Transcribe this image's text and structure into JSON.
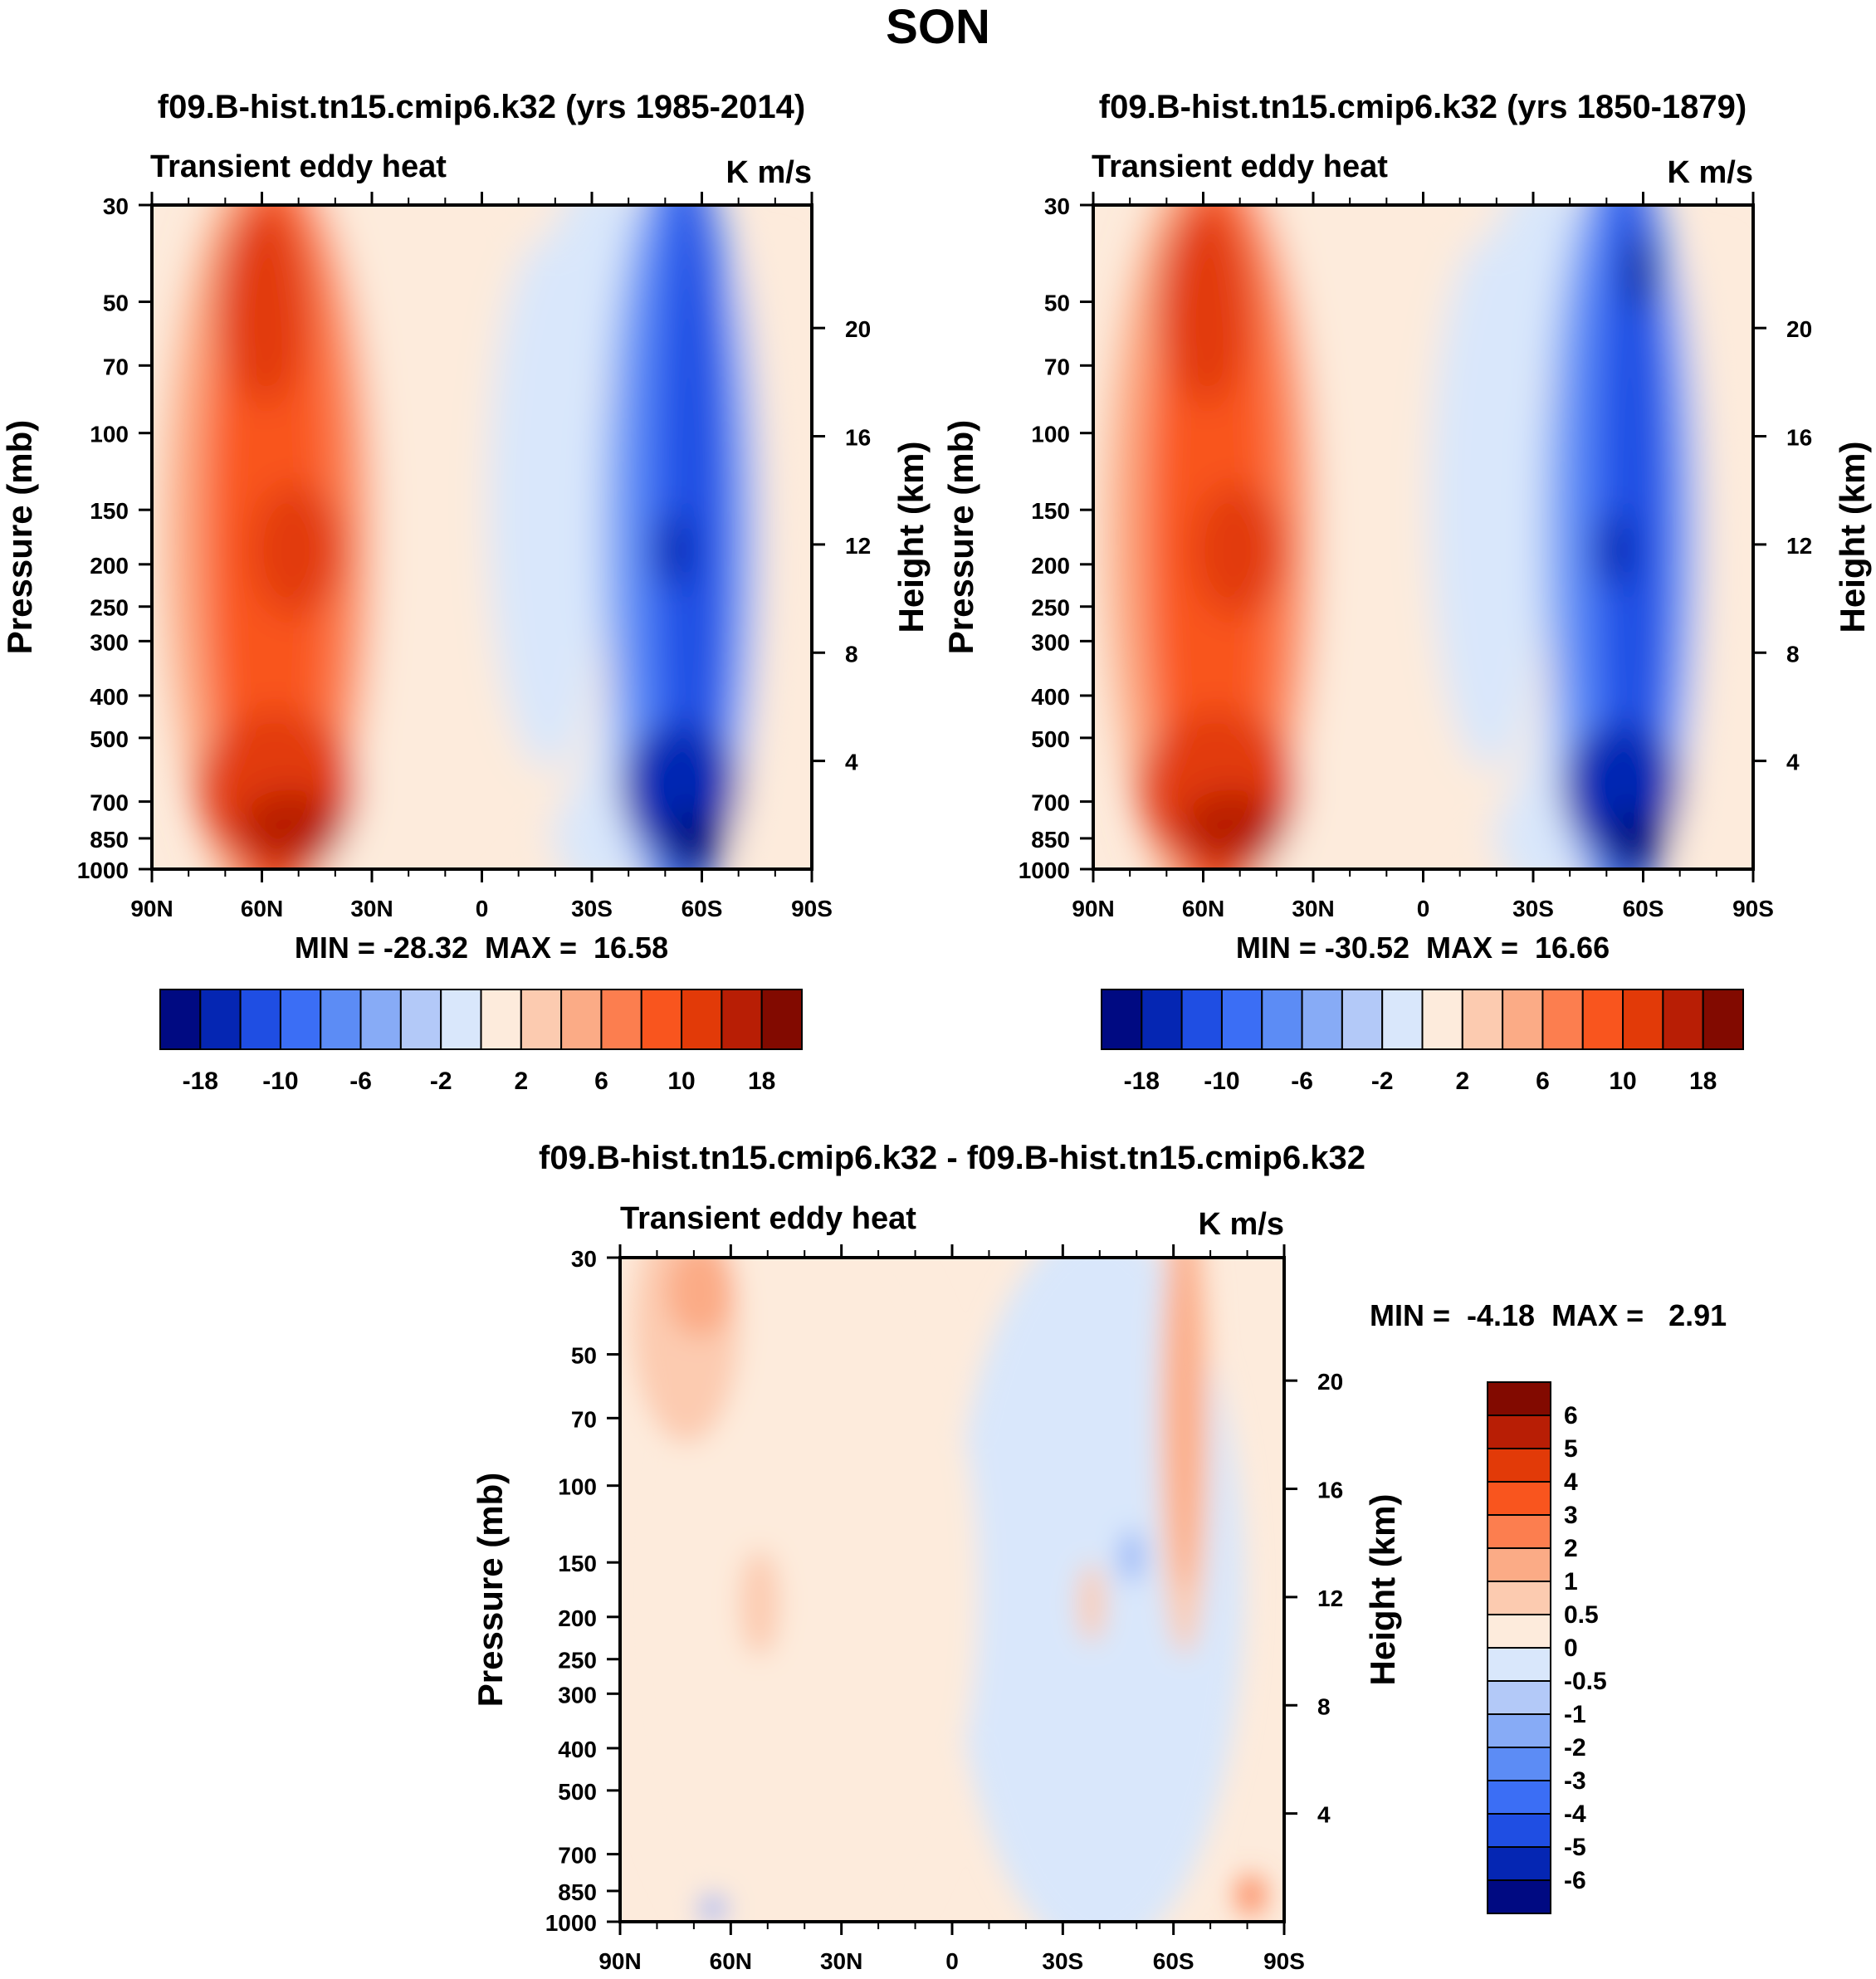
{
  "page_title": "SON",
  "colors": {
    "neg": [
      "#000a82",
      "#0526b3",
      "#1f4ee3",
      "#3b6ef5",
      "#5c8cf5",
      "#87abf6",
      "#b3c9f8",
      "#d9e7fb"
    ],
    "pos": [
      "#fdebdc",
      "#fccbb0",
      "#fbab86",
      "#fc7e4f",
      "#f9551e",
      "#e23a08",
      "#b81e05",
      "#820a00"
    ]
  },
  "chart_data": [
    {
      "id": "panel-1985-2014",
      "type": "contour",
      "title": "f09.B-hist.tn15.cmip6.k32 (yrs 1985-2014)",
      "field_label": "Transient eddy heat",
      "units": "K m/s",
      "ylabel": "Pressure (mb)",
      "ylabel_right": "Height (km)",
      "x_ticks": [
        "90N",
        "60N",
        "30N",
        "0",
        "30S",
        "60S",
        "90S"
      ],
      "x_range": [
        90,
        -90
      ],
      "y_ticks": [
        30,
        50,
        70,
        100,
        150,
        200,
        250,
        300,
        400,
        500,
        700,
        850,
        1000
      ],
      "y_range": [
        30,
        1000
      ],
      "height_ticks": [
        20,
        16,
        12,
        8,
        4
      ],
      "stats": "MIN = -28.32  MAX =  16.58",
      "min": -28.32,
      "max": 16.58,
      "levels": [
        -18,
        -14,
        -10,
        -8,
        -6,
        -4,
        -2,
        0,
        2,
        4,
        6,
        8,
        10,
        14,
        18
      ],
      "colorbar_labels": [
        "-18",
        "-10",
        "-6",
        "-2",
        "2",
        "6",
        "10",
        "18"
      ]
    },
    {
      "id": "panel-1850-1879",
      "type": "contour",
      "title": "f09.B-hist.tn15.cmip6.k32 (yrs 1850-1879)",
      "field_label": "Transient eddy heat",
      "units": "K m/s",
      "ylabel": "Pressure (mb)",
      "ylabel_right": "Height (km)",
      "x_ticks": [
        "90N",
        "60N",
        "30N",
        "0",
        "30S",
        "60S",
        "90S"
      ],
      "x_range": [
        90,
        -90
      ],
      "y_ticks": [
        30,
        50,
        70,
        100,
        150,
        200,
        250,
        300,
        400,
        500,
        700,
        850,
        1000
      ],
      "y_range": [
        30,
        1000
      ],
      "height_ticks": [
        20,
        16,
        12,
        8,
        4
      ],
      "stats": "MIN = -30.52  MAX =  16.66",
      "min": -30.52,
      "max": 16.66,
      "levels": [
        -18,
        -14,
        -10,
        -8,
        -6,
        -4,
        -2,
        0,
        2,
        4,
        6,
        8,
        10,
        14,
        18
      ],
      "colorbar_labels": [
        "-18",
        "-10",
        "-6",
        "-2",
        "2",
        "6",
        "10",
        "18"
      ]
    },
    {
      "id": "panel-difference",
      "type": "contour",
      "title": "f09.B-hist.tn15.cmip6.k32 - f09.B-hist.tn15.cmip6.k32",
      "field_label": "Transient eddy heat",
      "units": "K m/s",
      "ylabel": "Pressure (mb)",
      "ylabel_right": "Height (km)",
      "x_ticks": [
        "90N",
        "60N",
        "30N",
        "0",
        "30S",
        "60S",
        "90S"
      ],
      "x_range": [
        90,
        -90
      ],
      "y_ticks": [
        30,
        50,
        70,
        100,
        150,
        200,
        250,
        300,
        400,
        500,
        700,
        850,
        1000
      ],
      "y_range": [
        30,
        1000
      ],
      "height_ticks": [
        20,
        16,
        12,
        8,
        4
      ],
      "stats": "MIN =  -4.18  MAX =   2.91",
      "min": -4.18,
      "max": 2.91,
      "levels": [
        -6,
        -5,
        -4,
        -3,
        -2,
        -1,
        -0.5,
        0,
        0.5,
        1,
        2,
        3,
        4,
        5,
        6
      ],
      "colorbar_labels": [
        "6",
        "5",
        "4",
        "3",
        "2",
        "1",
        "0.5",
        "0",
        "-0.5",
        "-1",
        "-2",
        "-3",
        "-4",
        "-5",
        "-6"
      ]
    }
  ]
}
